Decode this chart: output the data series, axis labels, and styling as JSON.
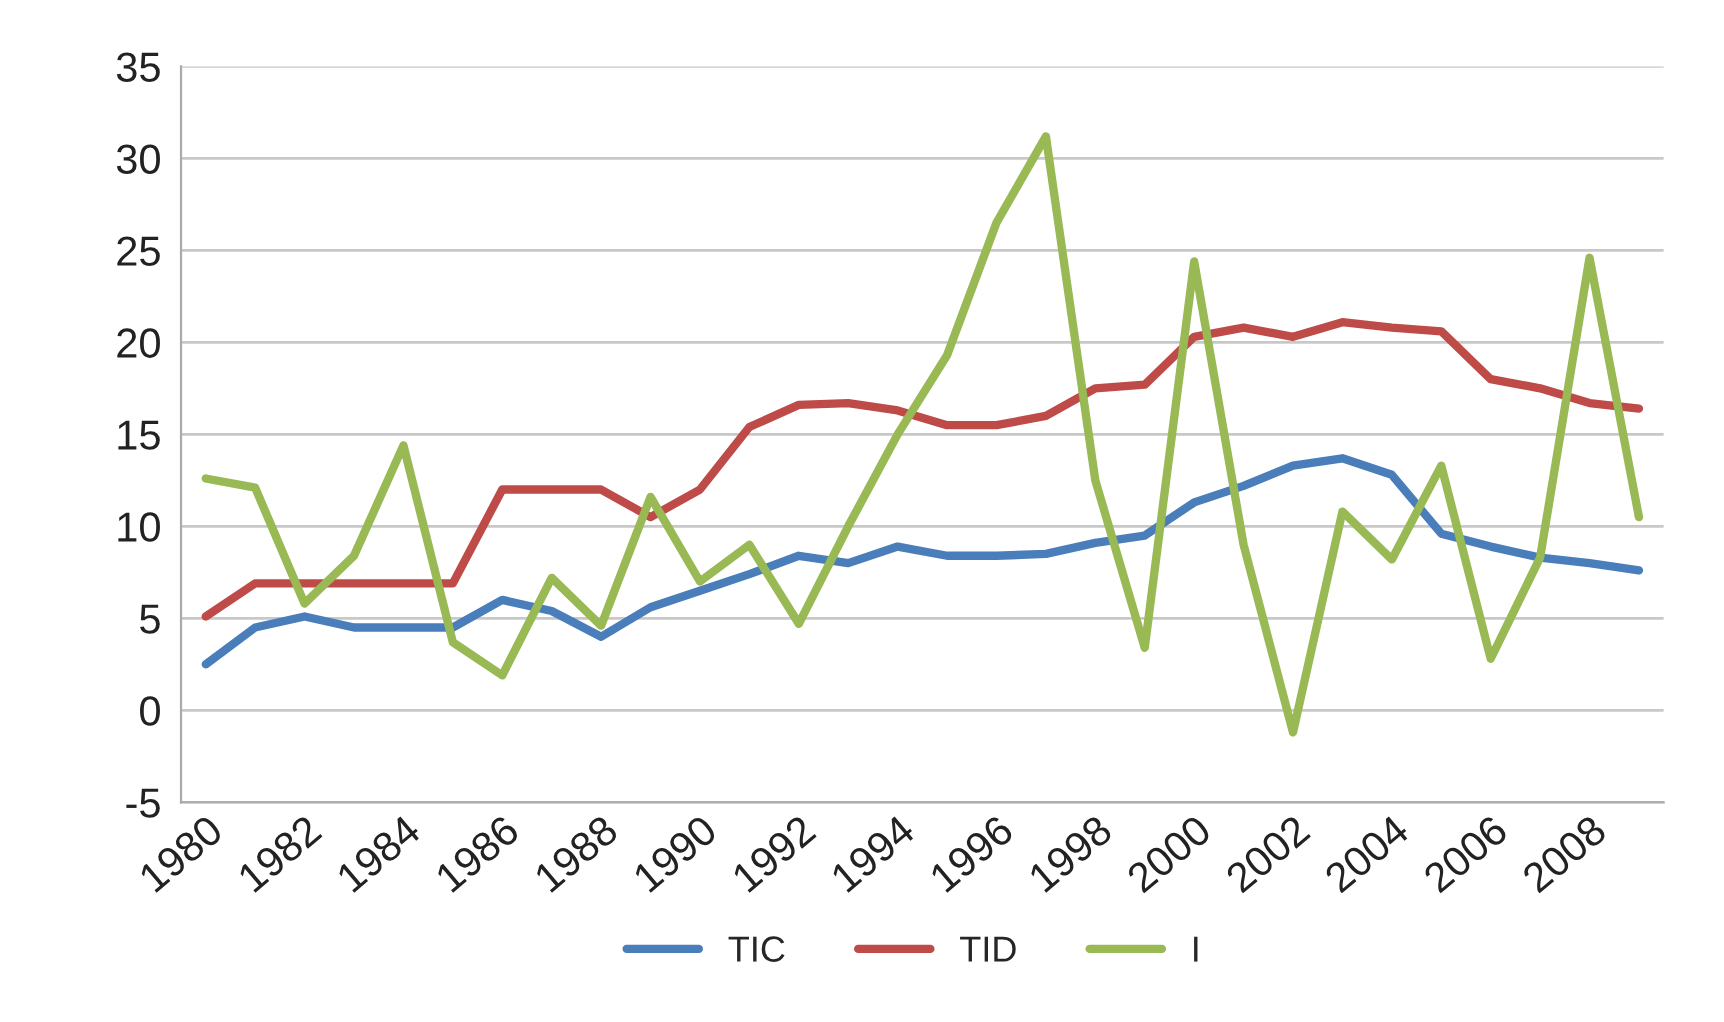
{
  "chart_data": {
    "type": "line",
    "categories": [
      "1980",
      null,
      "1982",
      null,
      "1984",
      null,
      "1986",
      null,
      "1988",
      null,
      "1990",
      null,
      "1992",
      null,
      "1994",
      null,
      "1996",
      null,
      "1998",
      null,
      "2000",
      null,
      "2002",
      null,
      "2004",
      null,
      "2006",
      null,
      "2008",
      null
    ],
    "series": [
      {
        "name": "TIC",
        "color": "#4a7ebb",
        "values": [
          2.5,
          4.5,
          5.1,
          4.5,
          4.5,
          4.5,
          6,
          5.4,
          4,
          5.6,
          6.5,
          7.4,
          8.4,
          8,
          8.9,
          8.4,
          8.4,
          8.5,
          9.1,
          9.5,
          11.3,
          12.2,
          13.3,
          13.7,
          12.8,
          9.6,
          8.9,
          8.3,
          8,
          7.6
        ]
      },
      {
        "name": "TID",
        "color": "#be4b48",
        "values": [
          5.1,
          6.9,
          6.9,
          6.9,
          6.9,
          6.9,
          12,
          12,
          12,
          10.5,
          12,
          15.4,
          16.6,
          16.7,
          16.3,
          15.5,
          15.5,
          16,
          17.5,
          17.7,
          20.3,
          20.8,
          20.3,
          21.1,
          20.8,
          20.6,
          18,
          17.5,
          16.7,
          16.4
        ]
      },
      {
        "name": "I",
        "color": "#98b954",
        "values": [
          12.6,
          12.1,
          5.8,
          8.4,
          14.4,
          3.7,
          1.9,
          7.2,
          4.6,
          11.6,
          7,
          9,
          4.7,
          10,
          15,
          19.3,
          26.5,
          31.2,
          12.5,
          3.4,
          24.4,
          9,
          -1.2,
          10.8,
          8.2,
          13.3,
          2.8,
          8.3,
          24.6,
          10.5
        ]
      }
    ],
    "ylim": [
      -5,
      35
    ],
    "yticks": [
      -5,
      0,
      5,
      10,
      15,
      20,
      25,
      30,
      35
    ],
    "grid": "y",
    "legend": "bottom",
    "marker": "none",
    "line_style": "solid"
  }
}
